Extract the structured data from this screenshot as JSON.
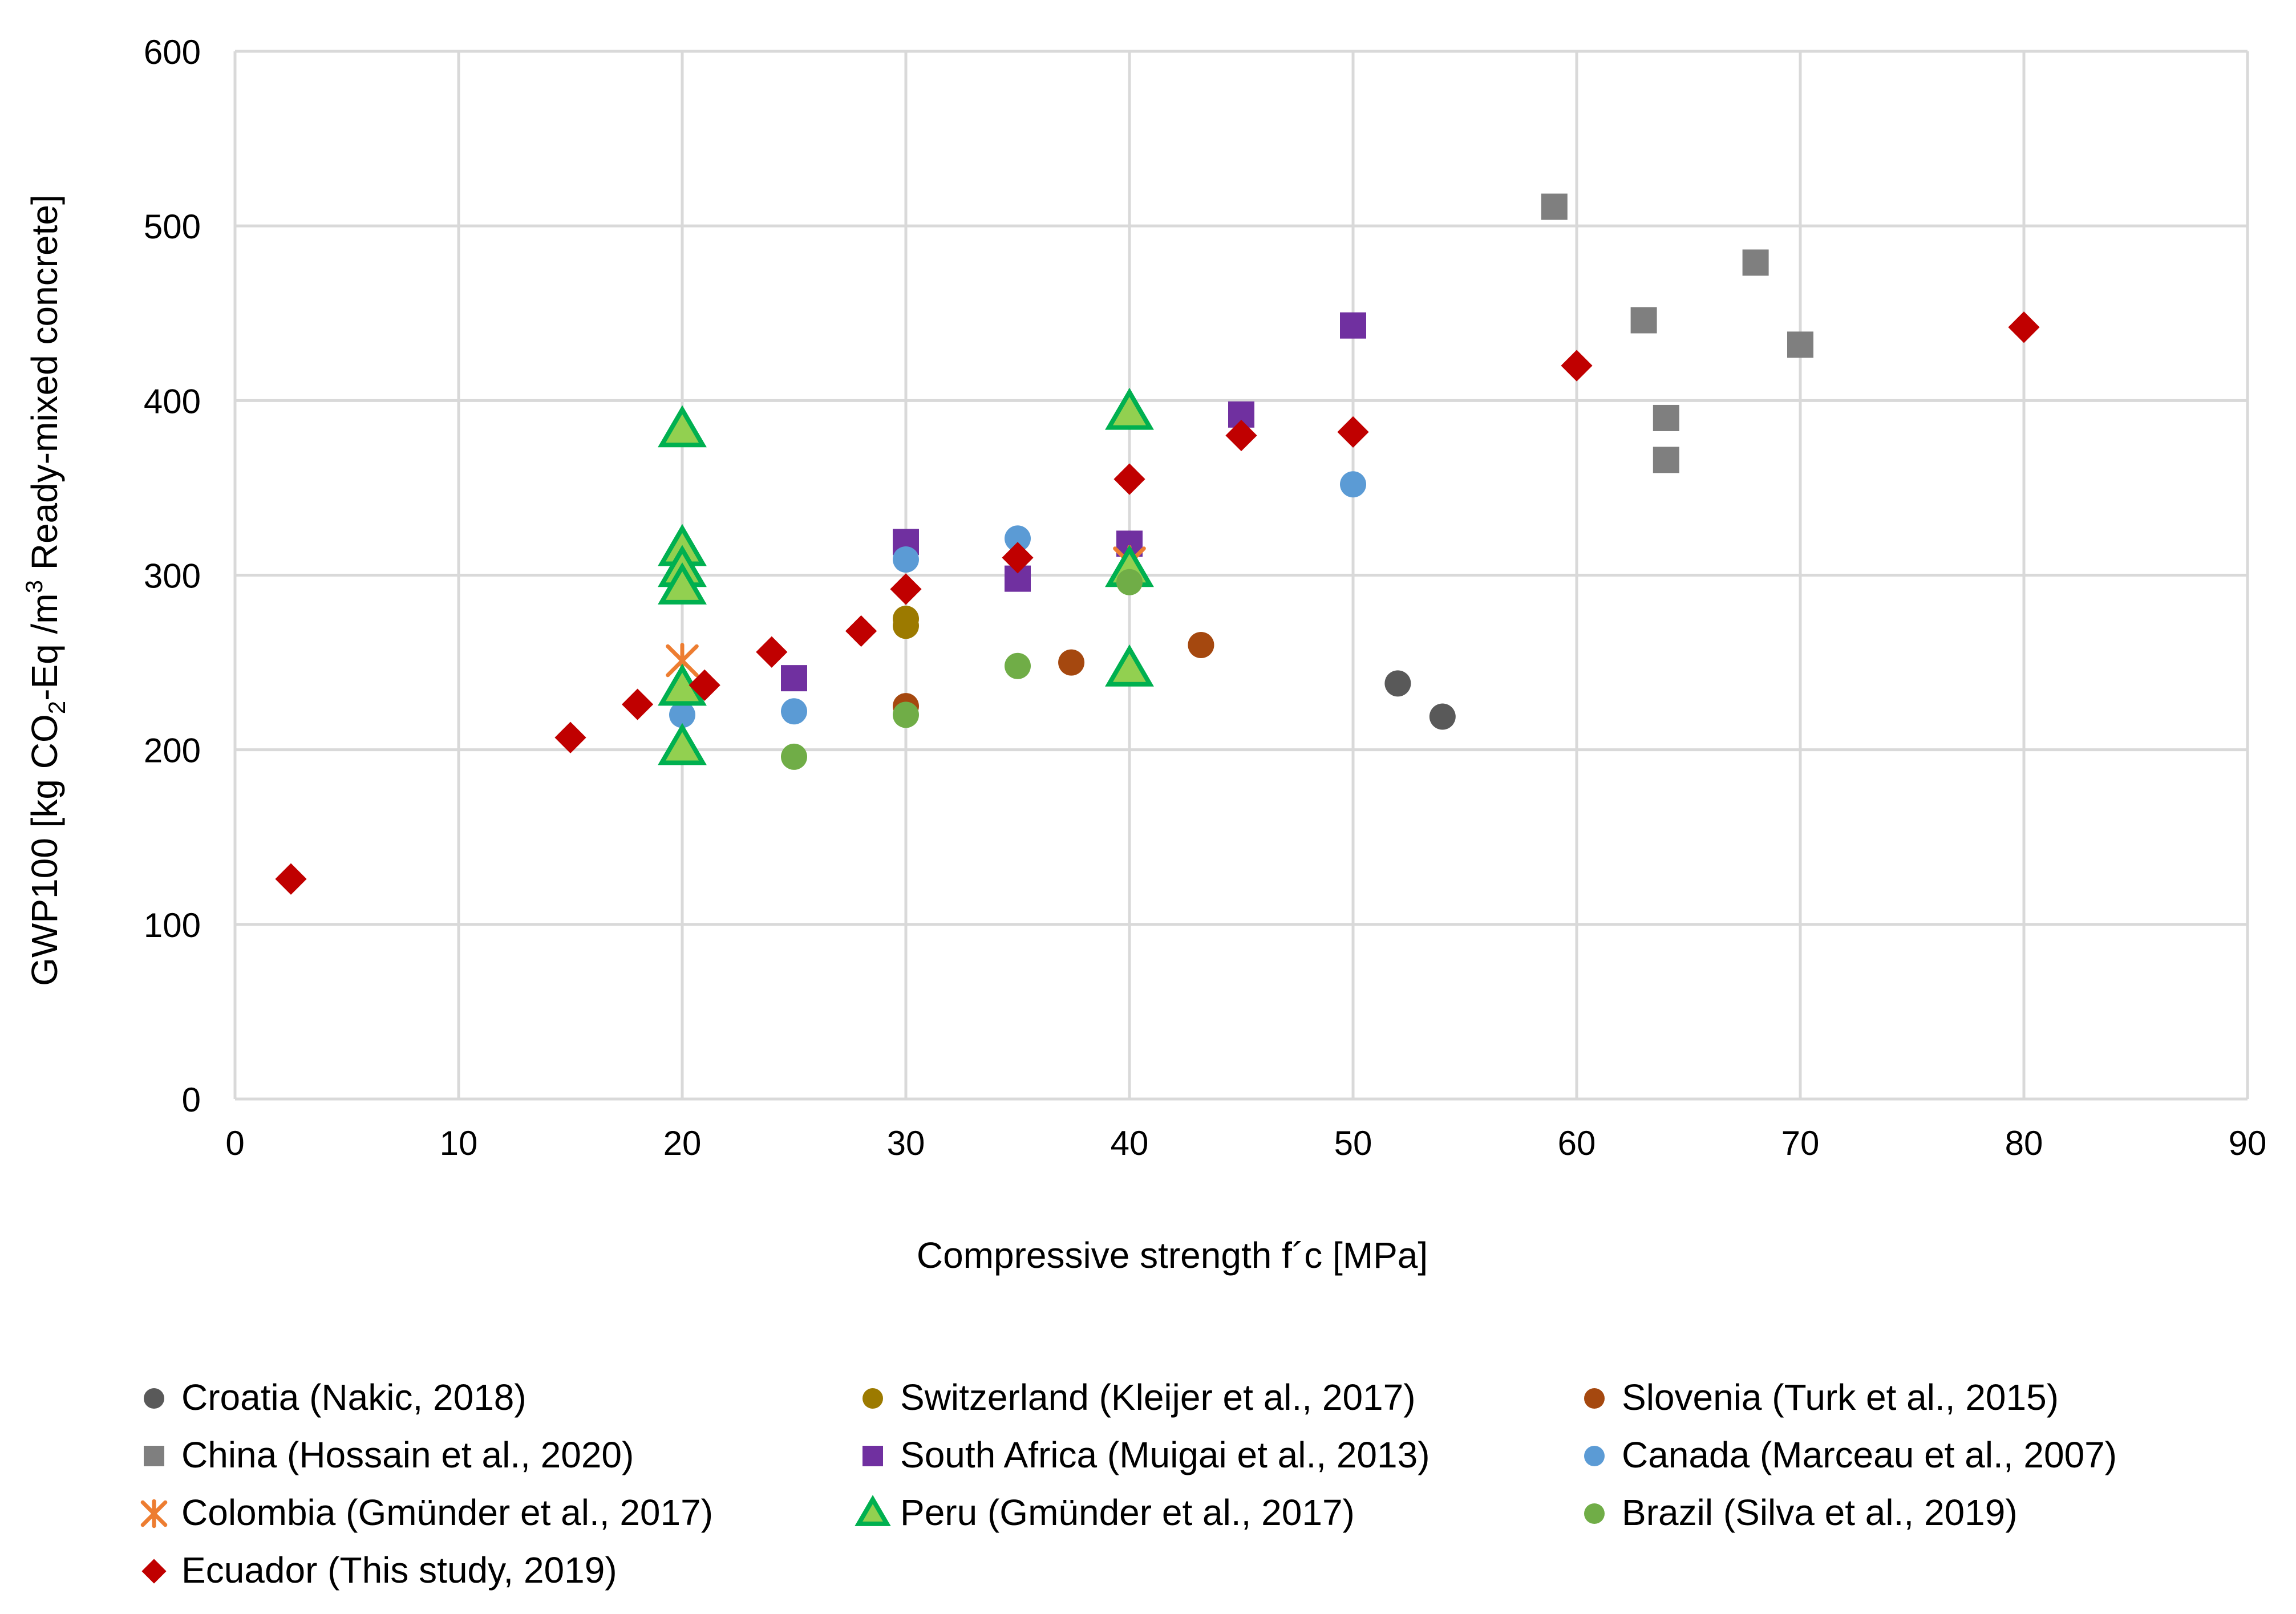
{
  "chart_data": {
    "type": "scatter",
    "xlabel": "Compressive strength f´c [MPa]",
    "ylabel": {
      "prefix": "GWP100 [kg CO",
      "sub": "2",
      "mid": "-Eq /m",
      "sup": "3",
      "suffix": " Ready-mixed concrete]"
    },
    "xlim": [
      0,
      90
    ],
    "ylim": [
      0,
      600
    ],
    "x_ticks": [
      "0",
      "10",
      "20",
      "30",
      "40",
      "50",
      "60",
      "70",
      "80",
      "90"
    ],
    "y_ticks": [
      "0",
      "100",
      "200",
      "300",
      "400",
      "500",
      "600"
    ],
    "grid": true,
    "legend_position": "bottom",
    "series": [
      {
        "name": "Croatia (Nakic, 2018)",
        "marker": "circle",
        "color": "#595959",
        "points": [
          [
            52,
            238
          ],
          [
            54,
            219
          ]
        ]
      },
      {
        "name": "Switzerland (Kleijer et al., 2017)",
        "marker": "circle",
        "color": "#9C7A00",
        "points": [
          [
            30,
            275
          ],
          [
            30,
            271
          ]
        ]
      },
      {
        "name": "Slovenia (Turk et al., 2015)",
        "marker": "circle",
        "color": "#A5480F",
        "points": [
          [
            30,
            225
          ],
          [
            37.4,
            250
          ],
          [
            43.2,
            260
          ]
        ]
      },
      {
        "name": "China (Hossain et al., 2020)",
        "marker": "square",
        "color": "#7F7F7F",
        "points": [
          [
            59,
            511
          ],
          [
            63,
            446
          ],
          [
            64,
            390
          ],
          [
            64,
            366
          ],
          [
            68,
            479
          ],
          [
            70,
            432
          ]
        ]
      },
      {
        "name": "South Africa (Muigai et al., 2013)",
        "marker": "square",
        "color": "#7030A0",
        "points": [
          [
            25,
            241
          ],
          [
            30,
            319
          ],
          [
            35,
            298
          ],
          [
            40,
            318
          ],
          [
            45,
            392
          ],
          [
            50,
            443
          ]
        ]
      },
      {
        "name": "Canada (Marceau et al., 2007)",
        "marker": "circle",
        "color": "#5B9BD5",
        "points": [
          [
            20,
            220
          ],
          [
            25,
            222
          ],
          [
            30,
            309
          ],
          [
            35,
            321
          ],
          [
            50,
            352
          ]
        ]
      },
      {
        "name": "Colombia (Gmünder et al., 2017)",
        "marker": "star",
        "color": "#ED7D31",
        "points": [
          [
            20,
            251
          ],
          [
            40,
            307
          ]
        ]
      },
      {
        "name": "Peru (Gmünder et al., 2017)",
        "marker": "triangle",
        "color": "#92D050",
        "stroke": "#00B050",
        "points": [
          [
            20,
            383
          ],
          [
            20,
            315
          ],
          [
            20,
            303
          ],
          [
            20,
            293
          ],
          [
            20,
            235
          ],
          [
            20,
            201
          ],
          [
            40,
            393
          ],
          [
            40,
            303
          ],
          [
            40,
            246
          ]
        ]
      },
      {
        "name": "Brazil (Silva et al., 2019)",
        "marker": "circle",
        "color": "#70AD47",
        "points": [
          [
            25,
            196
          ],
          [
            30,
            220
          ],
          [
            35,
            248
          ],
          [
            40,
            296
          ]
        ]
      },
      {
        "name": "Ecuador (This study, 2019)",
        "marker": "diamond",
        "color": "#C00000",
        "points": [
          [
            2.5,
            126
          ],
          [
            15,
            207
          ],
          [
            18,
            226
          ],
          [
            21,
            237
          ],
          [
            24,
            256
          ],
          [
            28,
            268
          ],
          [
            30,
            292
          ],
          [
            35,
            310
          ],
          [
            40,
            355
          ],
          [
            45,
            380
          ],
          [
            50,
            382
          ],
          [
            60,
            420
          ],
          [
            80,
            442
          ]
        ]
      }
    ]
  }
}
